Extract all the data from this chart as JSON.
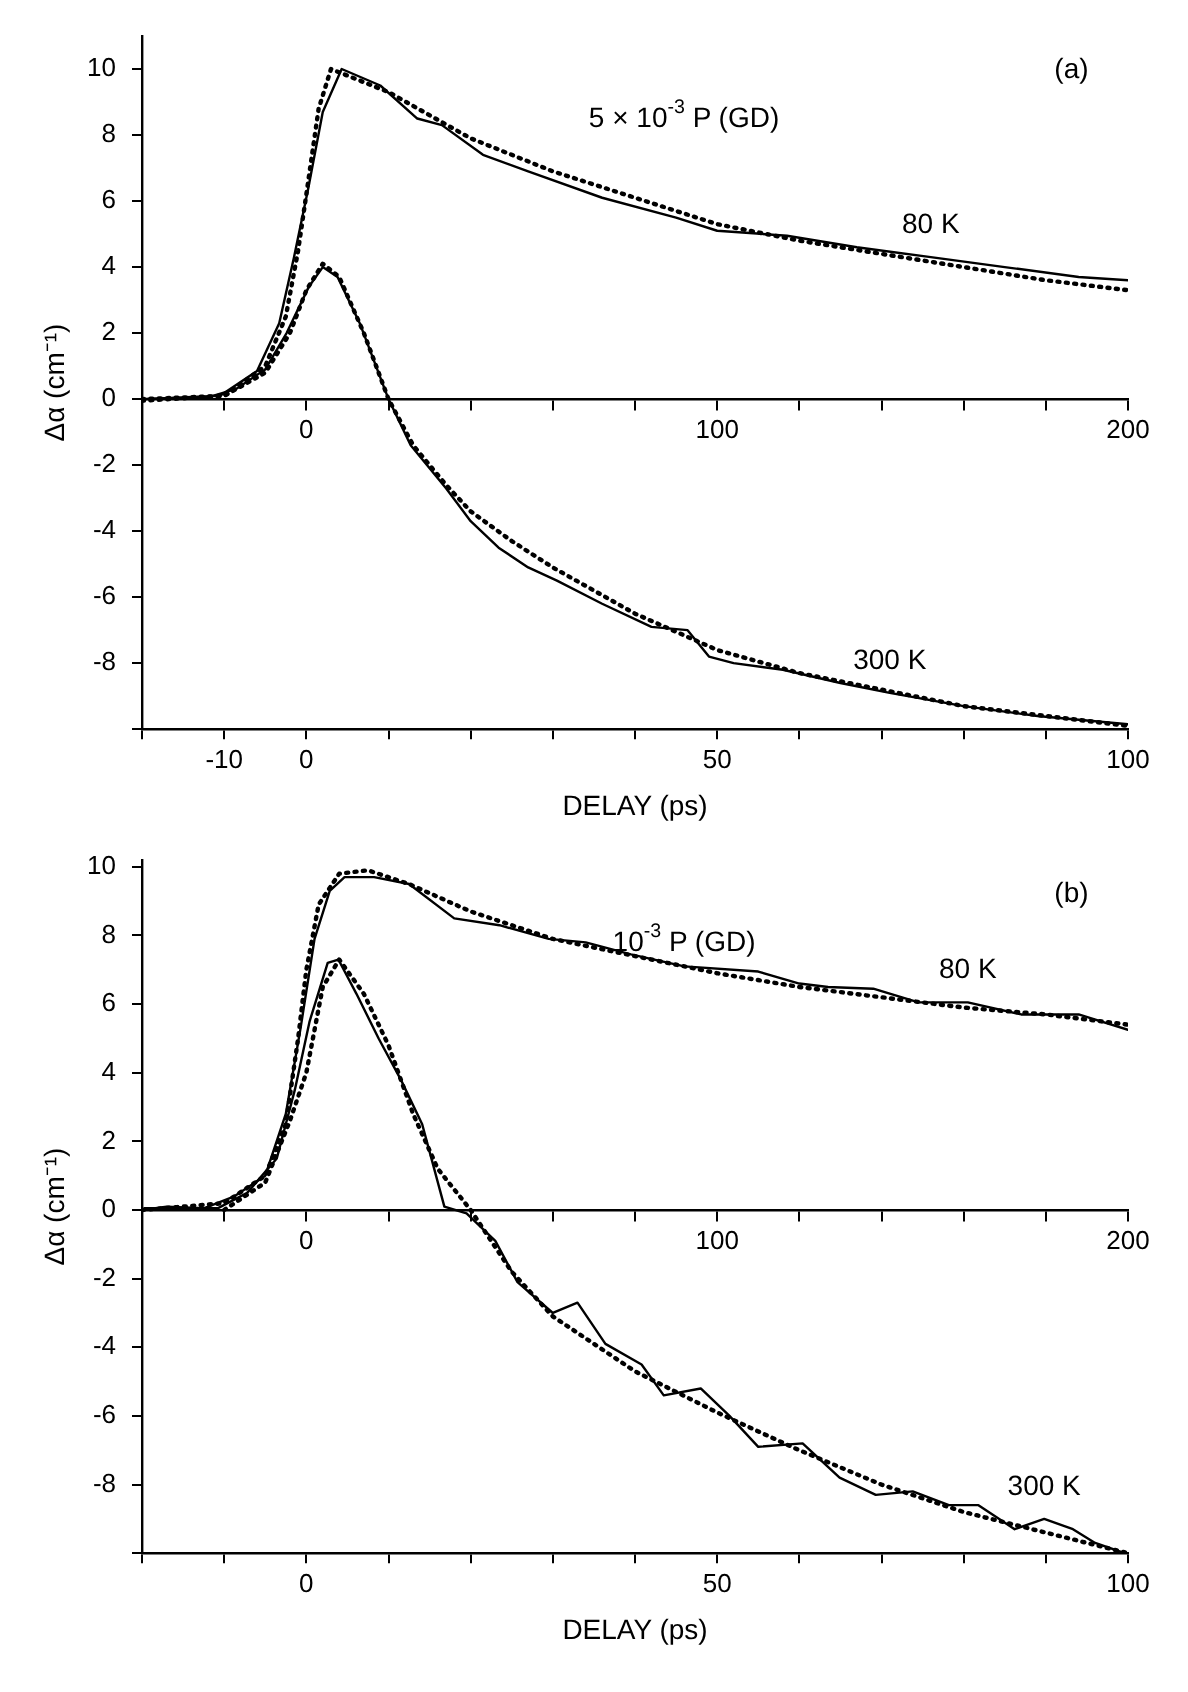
{
  "chart_data": [
    {
      "type": "line",
      "xlabel": "DELAY (ps)",
      "ylabel": "Δα (cm⁻¹)",
      "annotations": [
        "(a)",
        "5 × 10$^{-3}$ P (GD)"
      ],
      "xlim": [
        -20,
        100
      ],
      "xticks": [
        {
          "value": -20,
          "label": null
        },
        {
          "value": -10,
          "label": "-10"
        },
        {
          "value": 0,
          "label": "0"
        },
        {
          "value": 10,
          "label": null
        },
        {
          "value": 20,
          "label": null
        },
        {
          "value": 30,
          "label": null
        },
        {
          "value": 40,
          "label": null
        },
        {
          "value": 50,
          "label": "50"
        },
        {
          "value": 60,
          "label": null
        },
        {
          "value": 70,
          "label": null
        },
        {
          "value": 80,
          "label": null
        },
        {
          "value": 90,
          "label": null
        },
        {
          "value": 100,
          "label": "100"
        }
      ],
      "x2lim": [
        -40,
        200
      ],
      "x2ticks": [
        {
          "value": -20,
          "label": null
        },
        {
          "value": 0,
          "label": "0"
        },
        {
          "value": 20,
          "label": null
        },
        {
          "value": 40,
          "label": null
        },
        {
          "value": 60,
          "label": null
        },
        {
          "value": 80,
          "label": null
        },
        {
          "value": 100,
          "label": "100"
        },
        {
          "value": 120,
          "label": null
        },
        {
          "value": 140,
          "label": null
        },
        {
          "value": 160,
          "label": null
        },
        {
          "value": 180,
          "label": null
        },
        {
          "value": 200,
          "label": "200"
        }
      ],
      "ylim": [
        -10,
        11
      ],
      "yticks": [
        {
          "value": -10,
          "label": null
        },
        -8,
        -6,
        -4,
        -2,
        0,
        2,
        4,
        6,
        8,
        10
      ],
      "series": [
        {
          "name": "80 K",
          "color": "#000000",
          "axis": "x2",
          "x": [
            -40,
            -21,
            -12,
            -6.6,
            -3,
            0.5,
            4,
            8.6,
            18,
            27,
            33,
            43,
            54,
            72,
            90,
            100,
            117,
            134,
            152,
            170,
            188,
            200
          ],
          "values": [
            0,
            0.1,
            0.85,
            2.3,
            4.3,
            6.4,
            8.7,
            10,
            9.5,
            8.5,
            8.3,
            7.4,
            6.9,
            6.1,
            5.5,
            5.1,
            4.95,
            4.6,
            4.3,
            4.0,
            3.7,
            3.6
          ]
        },
        {
          "color": "#000000",
          "axis": "x2",
          "line_style": "dotted",
          "x": [
            -40,
            -20,
            -10,
            -5,
            -2,
            0,
            3,
            6,
            20,
            40,
            60,
            80,
            100,
            120,
            140,
            160,
            180,
            200
          ],
          "values": [
            0,
            0.1,
            1.0,
            2.5,
            4.5,
            6.2,
            8.8,
            10.0,
            9.3,
            7.9,
            6.9,
            6.1,
            5.3,
            4.8,
            4.4,
            4.0,
            3.6,
            3.3
          ]
        },
        {
          "name": "300 K",
          "color": "#000000",
          "x": [
            -20,
            -12,
            -8.6,
            -5,
            -2.4,
            0.3,
            2,
            3.8,
            6.5,
            10,
            12.7,
            17,
            20,
            23.4,
            27,
            30.5,
            36,
            42,
            46.4,
            49,
            52,
            58,
            65,
            71,
            80,
            89,
            100
          ],
          "values": [
            0,
            0.05,
            0.3,
            0.9,
            2.0,
            3.4,
            4.0,
            3.7,
            2.3,
            0,
            -1.4,
            -2.7,
            -3.7,
            -4.5,
            -5.1,
            -5.5,
            -6.2,
            -6.9,
            -7.0,
            -7.8,
            -8.0,
            -8.2,
            -8.6,
            -8.9,
            -9.3,
            -9.6,
            -9.85
          ]
        },
        {
          "color": "#000000",
          "line_style": "dotted",
          "x": [
            -20,
            -10,
            -5,
            -2,
            0,
            2,
            4,
            7,
            10,
            13,
            17,
            20,
            25,
            30,
            40,
            50,
            60,
            70,
            80,
            90,
            100
          ],
          "values": [
            -0.05,
            0.1,
            0.8,
            2.0,
            3.3,
            4.1,
            3.7,
            2.0,
            0,
            -1.4,
            -2.6,
            -3.4,
            -4.3,
            -5.1,
            -6.5,
            -7.6,
            -8.3,
            -8.8,
            -9.3,
            -9.6,
            -9.9
          ]
        }
      ]
    },
    {
      "type": "line",
      "xlabel": "DELAY (ps)",
      "ylabel": "Δα (cm⁻¹)",
      "annotations": [
        "(b)",
        "10$^{-3}$ P (GD)"
      ],
      "xlim": [
        -20,
        100
      ],
      "xticks": [
        {
          "value": -20,
          "label": null
        },
        {
          "value": -10,
          "label": null
        },
        {
          "value": 0,
          "label": "0"
        },
        {
          "value": 10,
          "label": null
        },
        {
          "value": 20,
          "label": null
        },
        {
          "value": 30,
          "label": null
        },
        {
          "value": 40,
          "label": null
        },
        {
          "value": 50,
          "label": "50"
        },
        {
          "value": 60,
          "label": null
        },
        {
          "value": 70,
          "label": null
        },
        {
          "value": 80,
          "label": null
        },
        {
          "value": 90,
          "label": null
        },
        {
          "value": 100,
          "label": "100"
        }
      ],
      "x2lim": [
        -40,
        200
      ],
      "x2ticks": [
        {
          "value": -20,
          "label": null
        },
        {
          "value": 0,
          "label": "0"
        },
        {
          "value": 20,
          "label": null
        },
        {
          "value": 40,
          "label": null
        },
        {
          "value": 60,
          "label": null
        },
        {
          "value": 80,
          "label": null
        },
        {
          "value": 100,
          "label": "100"
        },
        {
          "value": 120,
          "label": null
        },
        {
          "value": 140,
          "label": null
        },
        {
          "value": 160,
          "label": null
        },
        {
          "value": 180,
          "label": null
        },
        {
          "value": 200,
          "label": "200"
        }
      ],
      "ylim": [
        -10,
        10.2
      ],
      "yticks": [
        {
          "value": -10,
          "label": null
        },
        -8,
        -6,
        -4,
        -2,
        0,
        2,
        4,
        6,
        8,
        10
      ],
      "series": [
        {
          "name": "80 K",
          "color": "#000000",
          "axis": "x2",
          "x": [
            -40,
            -34,
            -25,
            -17.5,
            -10,
            -5,
            -1.4,
            2,
            5.7,
            9.3,
            16.5,
            25,
            36,
            47,
            59,
            68,
            79,
            92,
            110,
            120,
            127,
            138,
            149,
            161,
            174,
            188,
            200
          ],
          "values": [
            0,
            0.1,
            0.05,
            0.4,
            1.0,
            2.8,
            5.3,
            7.9,
            9.3,
            9.7,
            9.7,
            9.5,
            8.5,
            8.3,
            7.9,
            7.8,
            7.45,
            7.1,
            6.95,
            6.6,
            6.5,
            6.45,
            6.05,
            6.05,
            5.7,
            5.7,
            5.25
          ]
        },
        {
          "color": "#000000",
          "axis": "x2",
          "line_style": "dotted",
          "x": [
            -40,
            -20,
            -10,
            -5,
            -2,
            0,
            3,
            8,
            15,
            25,
            40,
            60,
            80,
            100,
            120,
            140,
            160,
            180,
            200
          ],
          "values": [
            0,
            0.2,
            1.0,
            2.5,
            5.0,
            7.0,
            8.9,
            9.8,
            9.9,
            9.5,
            8.7,
            7.9,
            7.4,
            6.9,
            6.5,
            6.2,
            5.9,
            5.7,
            5.4
          ]
        },
        {
          "name": "300 K",
          "color": "#000000",
          "x": [
            -19.7,
            -10.8,
            -7.2,
            -3.6,
            -1.4,
            0.4,
            2.6,
            3.9,
            6.1,
            8.8,
            11.5,
            14.1,
            16.8,
            19.5,
            23,
            25.7,
            30,
            33,
            36.4,
            40.8,
            43.5,
            48,
            51.5,
            55,
            60.4,
            64.9,
            69.3,
            73.8,
            78.2,
            81.8,
            86.2,
            89.8,
            93.3,
            96,
            99.6
          ],
          "values": [
            0.05,
            0.05,
            0.5,
            1.5,
            3.5,
            5.5,
            7.2,
            7.3,
            6.3,
            5.0,
            3.8,
            2.5,
            0.1,
            -0.1,
            -0.9,
            -2.1,
            -3.0,
            -2.7,
            -3.9,
            -4.5,
            -5.4,
            -5.2,
            -6.0,
            -6.9,
            -6.8,
            -7.8,
            -8.3,
            -8.2,
            -8.6,
            -8.6,
            -9.3,
            -9.0,
            -9.3,
            -9.7,
            -10
          ]
        },
        {
          "color": "#000000",
          "line_style": "dotted",
          "x": [
            -10,
            -5,
            -2,
            0,
            2,
            4,
            7,
            10,
            13,
            16,
            20,
            25,
            30,
            40,
            50,
            60,
            70,
            80,
            90,
            100
          ],
          "values": [
            0,
            0.8,
            2.6,
            4.0,
            6.5,
            7.3,
            6.3,
            4.8,
            2.8,
            1.2,
            0,
            -1.8,
            -3.1,
            -4.7,
            -5.9,
            -7.0,
            -8.0,
            -8.8,
            -9.4,
            -10
          ]
        }
      ]
    }
  ]
}
